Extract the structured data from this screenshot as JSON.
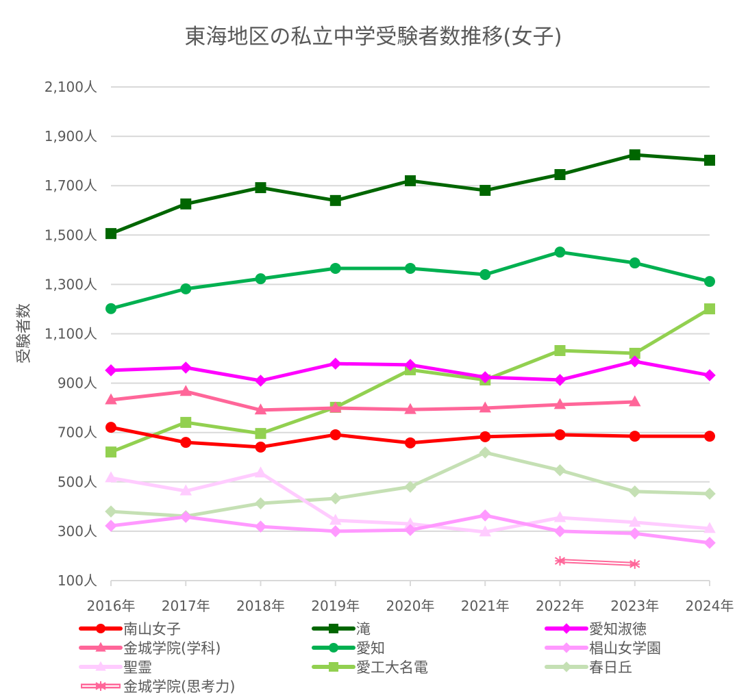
{
  "chart_data": {
    "type": "line",
    "title": "東海地区の私立中学受験者数推移(女子)",
    "xlabel": "",
    "ylabel": "受験者数",
    "ylim": [
      100,
      2100
    ],
    "y_ticks": [
      100,
      300,
      500,
      700,
      900,
      1100,
      1300,
      1500,
      1700,
      1900,
      2100
    ],
    "y_tick_labels": [
      "100人",
      "300人",
      "500人",
      "700人",
      "900人",
      "1,100人",
      "1,300人",
      "1,500人",
      "1,700人",
      "1,900人",
      "2,100人"
    ],
    "categories": [
      "2016年",
      "2017年",
      "2018年",
      "2019年",
      "2020年",
      "2021年",
      "2022年",
      "2023年",
      "2024年"
    ],
    "grid": true,
    "legend_position": "bottom",
    "series": [
      {
        "name": "南山女子",
        "color": "#ff0000",
        "marker": "circle",
        "values": [
          721,
          660,
          641,
          691,
          658,
          683,
          691,
          685,
          685
        ]
      },
      {
        "name": "滝",
        "color": "#006600",
        "marker": "square",
        "values": [
          1506,
          1626,
          1692,
          1640,
          1720,
          1681,
          1745,
          1825,
          1803
        ]
      },
      {
        "name": "愛知淑徳",
        "color": "#ff00ff",
        "marker": "diamond",
        "values": [
          952,
          963,
          910,
          979,
          974,
          924,
          913,
          988,
          932
        ]
      },
      {
        "name": "金城学院(学科)",
        "color": "#ff6699",
        "marker": "triangle",
        "values": [
          832,
          866,
          791,
          799,
          793,
          799,
          813,
          824,
          null
        ]
      },
      {
        "name": "愛知",
        "color": "#00b050",
        "marker": "circle",
        "values": [
          1202,
          1282,
          1323,
          1365,
          1365,
          1340,
          1431,
          1387,
          1312
        ]
      },
      {
        "name": "椙山女学園",
        "color": "#ff99ff",
        "marker": "diamond",
        "values": [
          322,
          358,
          319,
          300,
          305,
          364,
          300,
          291,
          253
        ]
      },
      {
        "name": "聖霊",
        "color": "#ffccff",
        "marker": "triangle",
        "values": [
          516,
          463,
          536,
          344,
          330,
          297,
          355,
          336,
          311
        ]
      },
      {
        "name": "愛工大名電",
        "color": "#92d050",
        "marker": "square",
        "values": [
          621,
          741,
          696,
          802,
          954,
          913,
          1032,
          1021,
          1201
        ]
      },
      {
        "name": "春日丘",
        "color": "#c5e0b4",
        "marker": "diamond",
        "values": [
          380,
          361,
          413,
          433,
          480,
          619,
          547,
          461,
          452
        ]
      },
      {
        "name": "金城学院(思考力)",
        "color": "#ff6699",
        "marker": "star",
        "double": true,
        "values": [
          null,
          null,
          null,
          null,
          null,
          null,
          180,
          167,
          null
        ]
      }
    ]
  }
}
